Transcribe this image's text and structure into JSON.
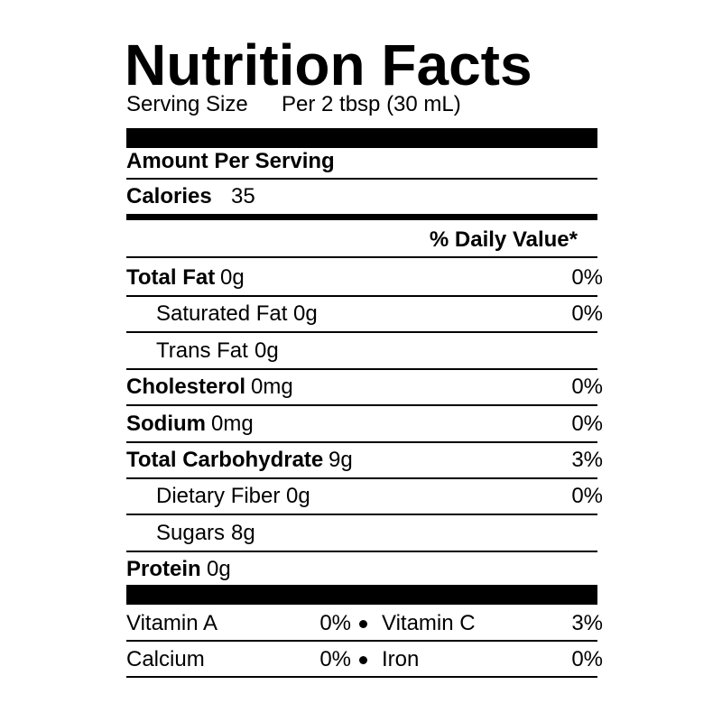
{
  "title": "Nutrition Facts",
  "serving": {
    "label": "Serving Size",
    "value": "Per 2 tbsp (30 mL)"
  },
  "amount_header": "Amount Per Serving",
  "calories": {
    "label": "Calories",
    "value": "35"
  },
  "daily_value_header": "% Daily Value*",
  "nutrients": [
    {
      "name": "Total Fat",
      "amount": "0g",
      "dv": "0%"
    },
    {
      "name": "Saturated Fat",
      "amount": "0g",
      "dv": "0%",
      "indent": true
    },
    {
      "name": "Trans Fat",
      "amount": "0g",
      "indent": true
    },
    {
      "name": "Cholesterol",
      "amount": "0mg",
      "dv": "0%"
    },
    {
      "name": "Sodium",
      "amount": "0mg",
      "dv": "0%"
    },
    {
      "name": "Total Carbohydrate",
      "amount": "9g",
      "dv": "3%"
    },
    {
      "name": "Dietary Fiber",
      "amount": "0g",
      "dv": "0%",
      "indent": true
    },
    {
      "name": "Sugars",
      "amount": "8g",
      "indent": true
    },
    {
      "name": "Protein",
      "amount": "0g"
    }
  ],
  "vitamins": [
    [
      {
        "name": "Vitamin A",
        "dv": "0%"
      },
      {
        "name": "Vitamin C",
        "dv": "3%"
      }
    ],
    [
      {
        "name": "Calcium",
        "dv": "0%"
      },
      {
        "name": "Iron",
        "dv": "0%"
      }
    ]
  ]
}
